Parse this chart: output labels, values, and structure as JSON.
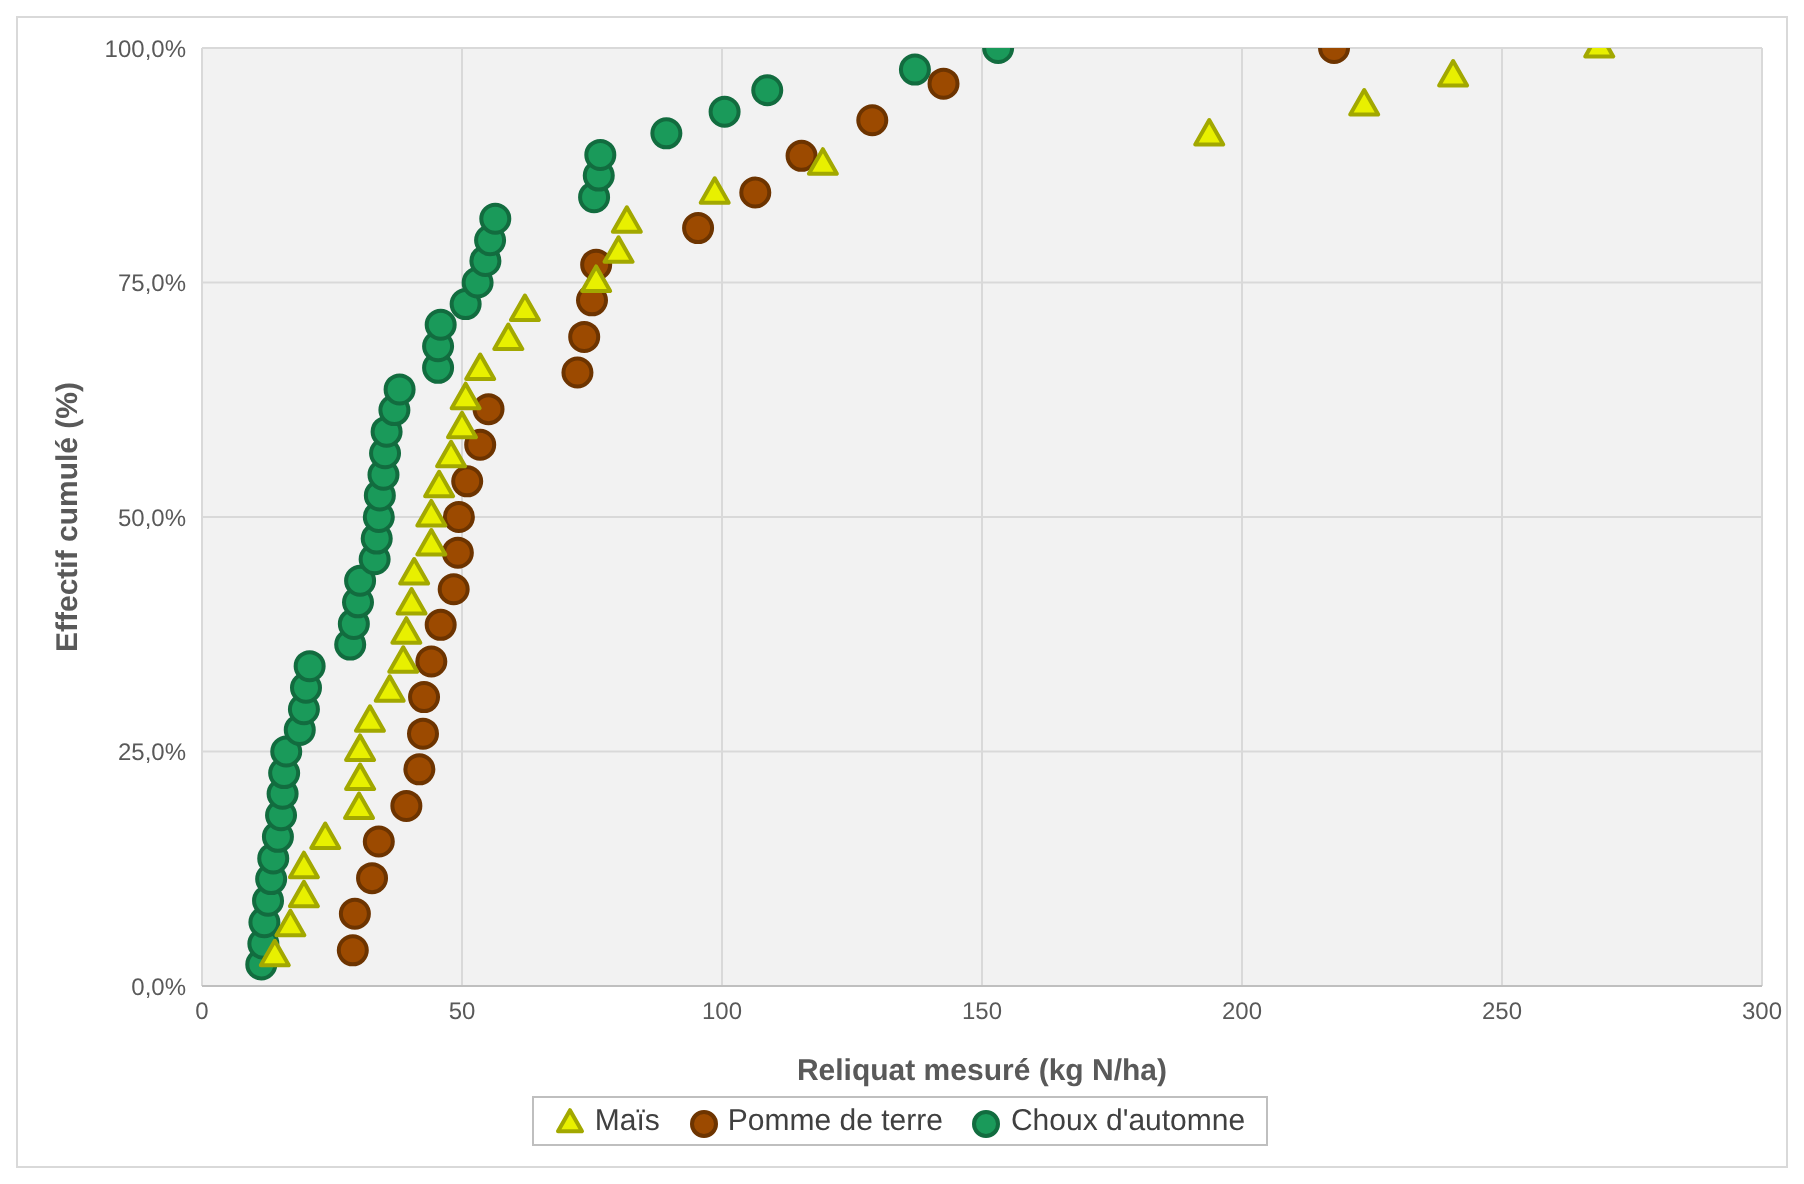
{
  "chart_data": {
    "type": "scatter",
    "xlabel": "Reliquat mesuré (kg N/ha)",
    "ylabel": "Effectif cumulé (%)",
    "xlim": [
      0,
      300
    ],
    "xticks": [
      0,
      50,
      100,
      150,
      200,
      250,
      300
    ],
    "ylim": [
      0,
      100
    ],
    "yticks": [
      {
        "value": 0,
        "label": "0,0%"
      },
      {
        "value": 25,
        "label": "25,0%"
      },
      {
        "value": 50,
        "label": "50,0%"
      },
      {
        "value": 75,
        "label": "75,0%"
      },
      {
        "value": 100,
        "label": "100,0%"
      }
    ],
    "grid": true,
    "legend": "bottom",
    "series": [
      {
        "name": "Maïs",
        "color": "#e8f000",
        "marker": "triangle",
        "x": [
          14,
          17,
          19.6,
          19.6,
          23.7,
          30.2,
          30.4,
          30.4,
          32.3,
          36.1,
          38.7,
          39.3,
          40.3,
          40.8,
          44.1,
          44.1,
          45.6,
          47.9,
          50,
          50.7,
          53.5,
          58.9,
          62.1,
          75.8,
          80.1,
          81.7,
          98.6,
          119.4,
          193.7,
          223.5,
          240.6,
          268.7
        ],
        "values": [
          3.1,
          6.3,
          9.4,
          12.5,
          15.6,
          18.8,
          21.9,
          25,
          28.1,
          31.3,
          34.4,
          37.5,
          40.6,
          43.8,
          46.9,
          50,
          53.1,
          56.3,
          59.4,
          62.5,
          65.6,
          68.8,
          71.9,
          75,
          78.1,
          81.3,
          84.4,
          87.5,
          90.6,
          93.8,
          96.9,
          100
        ]
      },
      {
        "name": "Pomme de terre",
        "color": "#9c4a00",
        "marker": "circle",
        "x": [
          29,
          29.4,
          32.7,
          34,
          39.3,
          41.8,
          42.5,
          42.7,
          44.1,
          45.9,
          48.4,
          49.2,
          49.4,
          51,
          53.5,
          55.1,
          72.2,
          73.5,
          75,
          75.8,
          95.4,
          106.4,
          115.3,
          128.9,
          142.6,
          217.7
        ],
        "values": [
          3.8,
          7.7,
          11.5,
          15.4,
          19.2,
          23.1,
          26.9,
          30.8,
          34.6,
          38.5,
          42.3,
          46.2,
          50,
          53.8,
          57.7,
          61.5,
          65.4,
          69.2,
          73.1,
          76.9,
          80.8,
          84.6,
          88.5,
          92.3,
          96.2,
          100
        ]
      },
      {
        "name": "Choux d'automne",
        "color": "#1a9a5a",
        "marker": "circle",
        "x": [
          11.4,
          11.8,
          12,
          12.7,
          13.3,
          13.7,
          14.6,
          15.2,
          15.5,
          15.8,
          16.2,
          18.8,
          19.6,
          20,
          20.7,
          28.5,
          29.2,
          30,
          30.4,
          33.2,
          33.6,
          34,
          34.2,
          34.9,
          35.2,
          35.5,
          37,
          38,
          45.4,
          45.4,
          45.9,
          50.7,
          53,
          54.5,
          55.4,
          56.4,
          75.4,
          76.3,
          76.6,
          89.3,
          100.5,
          108.7,
          137.1,
          153.1
        ],
        "values": [
          2.3,
          4.5,
          6.8,
          9.1,
          11.4,
          13.6,
          15.9,
          18.2,
          20.5,
          22.7,
          25,
          27.3,
          29.5,
          31.8,
          34.1,
          36.4,
          38.6,
          40.9,
          43.2,
          45.5,
          47.7,
          50,
          52.3,
          54.5,
          56.8,
          59.1,
          61.4,
          63.6,
          65.9,
          68.2,
          70.5,
          72.7,
          75,
          77.3,
          79.5,
          81.8,
          84.1,
          86.4,
          88.6,
          90.9,
          93.2,
          95.5,
          97.7,
          100
        ]
      }
    ]
  }
}
